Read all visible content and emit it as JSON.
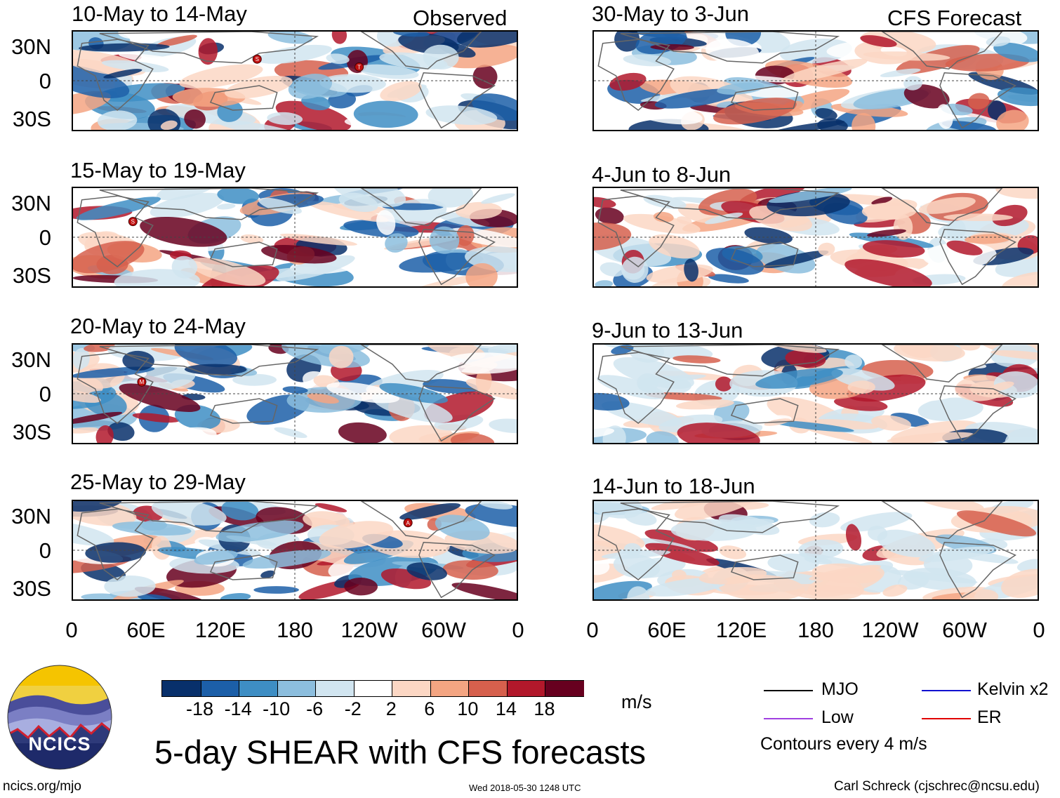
{
  "observed_label": "Observed",
  "forecast_label": "CFS Forecast",
  "panels_left": [
    {
      "period": "10-May to 14-May"
    },
    {
      "period": "15-May to 19-May"
    },
    {
      "period": "20-May to 24-May"
    },
    {
      "period": "25-May to 29-May"
    }
  ],
  "panels_right": [
    {
      "period": "30-May to 3-Jun"
    },
    {
      "period": "4-Jun to 8-Jun"
    },
    {
      "period": "9-Jun to 13-Jun"
    },
    {
      "period": "14-Jun to 18-Jun"
    }
  ],
  "lat_labels": [
    "30N",
    "0",
    "30S"
  ],
  "lon_labels": [
    "0",
    "60E",
    "120E",
    "180",
    "120W",
    "60W",
    "0"
  ],
  "storm_markers": [
    {
      "panel": 0,
      "letter": "S"
    },
    {
      "panel": 0,
      "letter": "T"
    },
    {
      "panel": 1,
      "letter": "S"
    },
    {
      "panel": 2,
      "letter": "M"
    },
    {
      "panel": 3,
      "letter": "A"
    }
  ],
  "colorbar": {
    "colors": [
      "#08306b",
      "#1c5fa8",
      "#3e8ec4",
      "#8cbede",
      "#d1e5f0",
      "#ffffff",
      "#fcd7c4",
      "#f4a582",
      "#d6604d",
      "#b2182b",
      "#67001f"
    ],
    "ticks": [
      "-18",
      "-14",
      "-10",
      "-6",
      "-2",
      "2",
      "6",
      "10",
      "14",
      "18"
    ],
    "units": "m/s"
  },
  "logo_text": "NCICS",
  "main_title": "5-day SHEAR with CFS forecasts",
  "legend": {
    "items": [
      {
        "label": "MJO",
        "color": "#000000"
      },
      {
        "label": "Low",
        "color": "#a040e0"
      },
      {
        "label": "Kelvin x2",
        "color": "#1010d0"
      },
      {
        "label": "ER",
        "color": "#e00000"
      }
    ],
    "contour_note": "Contours every 4 m/s"
  },
  "footer": {
    "url": "ncics.org/mjo",
    "timestamp": "Wed 2018-05-30 1248 UTC",
    "author": "Carl Schreck (cjschrec@ncsu.edu)"
  }
}
